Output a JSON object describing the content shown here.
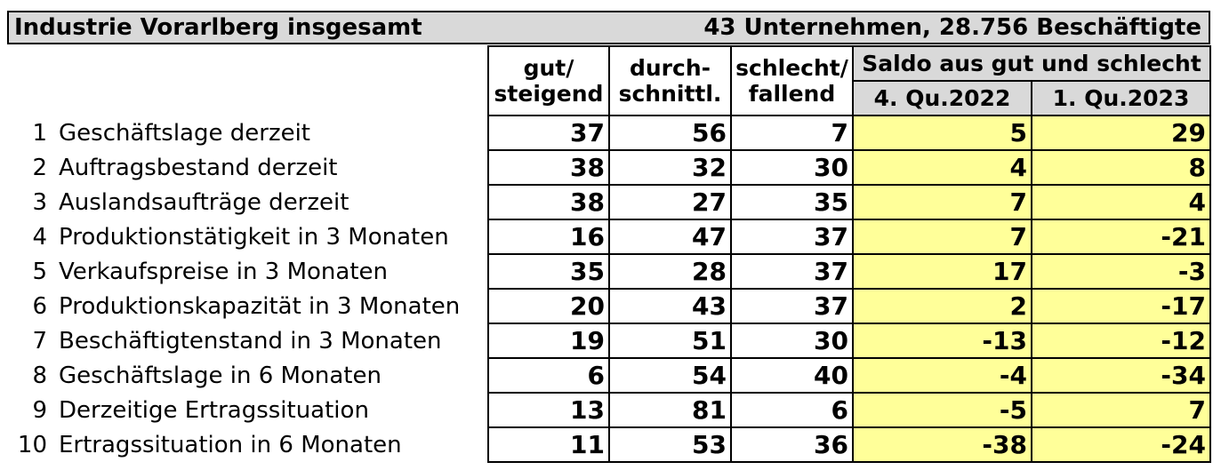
{
  "title": {
    "left": "Industrie Vorarlberg insgesamt",
    "right": "43 Unternehmen, 28.756 Beschäftigte"
  },
  "header": {
    "col_gut_line1": "gut/",
    "col_gut_line2": "steigend",
    "col_durch_line1": "durch-",
    "col_durch_line2": "schnittl.",
    "col_schlecht_line1": "schlecht/",
    "col_schlecht_line2": "fallend",
    "saldo": "Saldo aus gut und schlecht",
    "q_prev": "4. Qu.2022",
    "q_curr": "1. Qu.2023"
  },
  "rows": [
    {
      "num": "1",
      "label": "Geschäftslage derzeit",
      "gut": "37",
      "durch": "56",
      "schlecht": "7",
      "saldo_prev": "5",
      "saldo_curr": "29"
    },
    {
      "num": "2",
      "label": "Auftragsbestand derzeit",
      "gut": "38",
      "durch": "32",
      "schlecht": "30",
      "saldo_prev": "4",
      "saldo_curr": "8"
    },
    {
      "num": "3",
      "label": "Auslandsaufträge derzeit",
      "gut": "38",
      "durch": "27",
      "schlecht": "35",
      "saldo_prev": "7",
      "saldo_curr": "4"
    },
    {
      "num": "4",
      "label": "Produktionstätigkeit in 3 Monaten",
      "gut": "16",
      "durch": "47",
      "schlecht": "37",
      "saldo_prev": "7",
      "saldo_curr": "-21"
    },
    {
      "num": "5",
      "label": "Verkaufspreise in 3 Monaten",
      "gut": "35",
      "durch": "28",
      "schlecht": "37",
      "saldo_prev": "17",
      "saldo_curr": "-3"
    },
    {
      "num": "6",
      "label": "Produktionskapazität in 3 Monaten",
      "gut": "20",
      "durch": "43",
      "schlecht": "37",
      "saldo_prev": "2",
      "saldo_curr": "-17"
    },
    {
      "num": "7",
      "label": "Beschäftigtenstand in 3 Monaten",
      "gut": "19",
      "durch": "51",
      "schlecht": "30",
      "saldo_prev": "-13",
      "saldo_curr": "-12"
    },
    {
      "num": "8",
      "label": "Geschäftslage in 6 Monaten",
      "gut": "6",
      "durch": "54",
      "schlecht": "40",
      "saldo_prev": "-4",
      "saldo_curr": "-34"
    },
    {
      "num": "9",
      "label": "Derzeitige Ertragssituation",
      "gut": "13",
      "durch": "81",
      "schlecht": "6",
      "saldo_prev": "-5",
      "saldo_curr": "7"
    },
    {
      "num": "10",
      "label": "Ertragssituation in 6 Monaten",
      "gut": "11",
      "durch": "53",
      "schlecht": "36",
      "saldo_prev": "-38",
      "saldo_curr": "-24"
    }
  ],
  "colors": {
    "header_bg": "#d9d9d9",
    "highlight_bg": "#ffff99"
  }
}
